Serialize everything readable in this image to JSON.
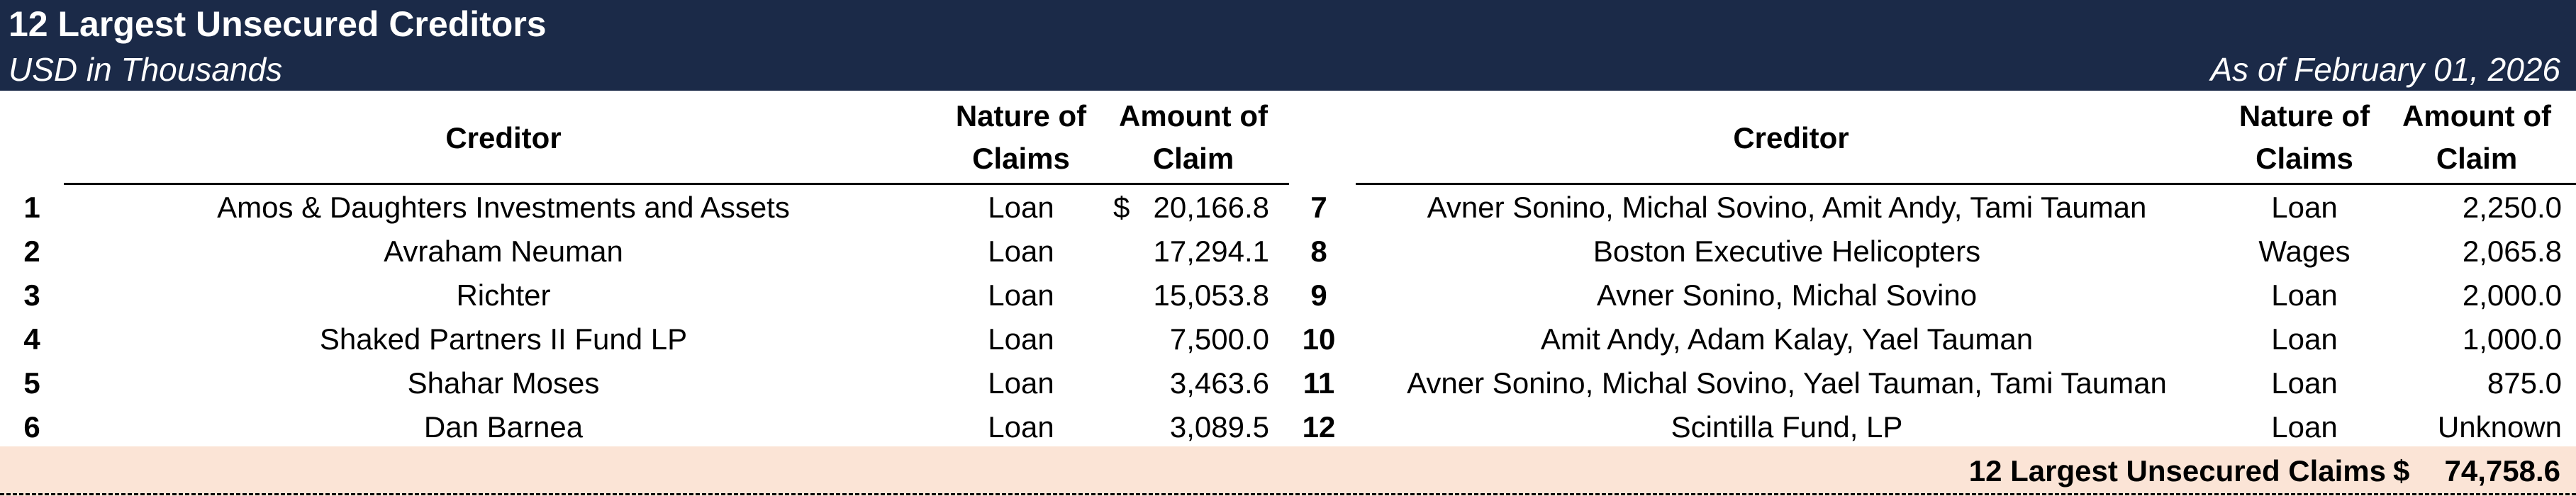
{
  "header": {
    "title": "12 Largest Unsecured Creditors",
    "subtitle": "USD in Thousands",
    "as_of": "As of February 01, 2026"
  },
  "columns": {
    "creditor": "Creditor",
    "nature_line1": "Nature of",
    "nature_line2": "Claims",
    "amount_line1": "Amount of",
    "amount_line2": "Claim"
  },
  "left_rows": [
    {
      "num": "1",
      "creditor": "Amos & Daughters Investments and Assets",
      "nature": "Loan",
      "currency": "$",
      "amount": "20,166.8"
    },
    {
      "num": "2",
      "creditor": "Avraham Neuman",
      "nature": "Loan",
      "currency": "",
      "amount": "17,294.1"
    },
    {
      "num": "3",
      "creditor": "Richter",
      "nature": "Loan",
      "currency": "",
      "amount": "15,053.8"
    },
    {
      "num": "4",
      "creditor": "Shaked Partners II Fund LP",
      "nature": "Loan",
      "currency": "",
      "amount": "7,500.0"
    },
    {
      "num": "5",
      "creditor": "Shahar Moses",
      "nature": "Loan",
      "currency": "",
      "amount": "3,463.6"
    },
    {
      "num": "6",
      "creditor": "Dan Barnea",
      "nature": "Loan",
      "currency": "",
      "amount": "3,089.5"
    }
  ],
  "right_rows": [
    {
      "num": "7",
      "creditor": "Avner Sonino, Michal Sovino, Amit Andy, Tami Tauman",
      "nature": "Loan",
      "amount": "2,250.0"
    },
    {
      "num": "8",
      "creditor": "Boston Executive Helicopters",
      "nature": "Wages",
      "amount": "2,065.8"
    },
    {
      "num": "9",
      "creditor": "Avner Sonino, Michal Sovino",
      "nature": "Loan",
      "amount": "2,000.0"
    },
    {
      "num": "10",
      "creditor": "Amit Andy, Adam Kalay, Yael Tauman",
      "nature": "Loan",
      "amount": "1,000.0"
    },
    {
      "num": "11",
      "creditor": "Avner Sonino, Michal Sovino, Yael Tauman, Tami Tauman",
      "nature": "Loan",
      "amount": "875.0"
    },
    {
      "num": "12",
      "creditor": "Scintilla Fund, LP",
      "nature": "Loan",
      "amount": "Unknown"
    }
  ],
  "total": {
    "label": "12 Largest Unsecured Claims",
    "currency": "$",
    "value": "74,758.6"
  },
  "colors": {
    "header_bg": "#1b2a48",
    "total_bg": "#fbe4d6"
  }
}
